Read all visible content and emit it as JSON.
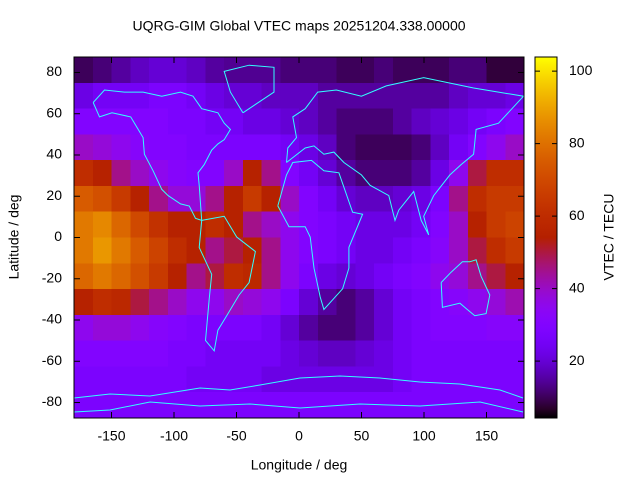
{
  "chart_data": {
    "type": "heatmap",
    "title": "UQRG-GIM Global VTEC maps 20251204.338.00000",
    "xlabel": "Longitude / deg",
    "ylabel": "Latitude / deg",
    "colorbar_label": "VTEC / TECU",
    "colormap": "gnuplot",
    "x": [
      -172.5,
      -157.5,
      -142.5,
      -127.5,
      -112.5,
      -97.5,
      -82.5,
      -67.5,
      -52.5,
      -37.5,
      -22.5,
      -7.5,
      7.5,
      22.5,
      37.5,
      52.5,
      67.5,
      82.5,
      97.5,
      112.5,
      127.5,
      142.5,
      157.5,
      172.5
    ],
    "y": [
      81.25,
      68.75,
      56.25,
      43.75,
      31.25,
      18.75,
      6.25,
      -6.25,
      -18.75,
      -31.25,
      -43.75,
      -56.25,
      -68.75,
      -81.25
    ],
    "z": [
      [
        10,
        12,
        15,
        18,
        20,
        20,
        18,
        15,
        14,
        14,
        14,
        12,
        12,
        12,
        10,
        10,
        12,
        10,
        10,
        10,
        12,
        12,
        8,
        8
      ],
      [
        22,
        25,
        25,
        25,
        28,
        28,
        25,
        22,
        20,
        20,
        18,
        18,
        18,
        15,
        15,
        15,
        15,
        15,
        15,
        15,
        18,
        20,
        20,
        22
      ],
      [
        30,
        30,
        30,
        30,
        30,
        28,
        28,
        25,
        25,
        22,
        22,
        20,
        18,
        15,
        12,
        12,
        12,
        15,
        18,
        20,
        22,
        25,
        28,
        30
      ],
      [
        40,
        38,
        35,
        32,
        30,
        30,
        28,
        28,
        28,
        28,
        28,
        25,
        22,
        18,
        12,
        10,
        10,
        10,
        12,
        18,
        25,
        30,
        35,
        40
      ],
      [
        60,
        55,
        45,
        40,
        35,
        32,
        30,
        30,
        40,
        55,
        45,
        30,
        25,
        20,
        15,
        12,
        12,
        12,
        15,
        22,
        35,
        50,
        60,
        60
      ],
      [
        75,
        72,
        65,
        55,
        45,
        38,
        38,
        45,
        55,
        65,
        55,
        40,
        30,
        25,
        20,
        18,
        18,
        20,
        22,
        28,
        45,
        60,
        65,
        65
      ],
      [
        82,
        85,
        78,
        70,
        62,
        55,
        55,
        60,
        55,
        45,
        40,
        35,
        30,
        28,
        25,
        22,
        22,
        22,
        25,
        30,
        40,
        55,
        65,
        68
      ],
      [
        82,
        88,
        82,
        75,
        68,
        60,
        55,
        45,
        50,
        55,
        45,
        35,
        30,
        28,
        25,
        22,
        22,
        25,
        28,
        32,
        40,
        50,
        60,
        65
      ],
      [
        78,
        82,
        78,
        72,
        65,
        55,
        45,
        50,
        60,
        58,
        45,
        35,
        28,
        22,
        20,
        22,
        25,
        28,
        30,
        35,
        38,
        45,
        50,
        55
      ],
      [
        55,
        60,
        58,
        50,
        45,
        40,
        35,
        35,
        40,
        38,
        35,
        28,
        20,
        15,
        12,
        15,
        20,
        25,
        28,
        30,
        32,
        35,
        38,
        42
      ],
      [
        35,
        38,
        38,
        35,
        32,
        30,
        28,
        28,
        28,
        28,
        25,
        20,
        15,
        12,
        12,
        15,
        20,
        25,
        28,
        30,
        30,
        30,
        32,
        32
      ],
      [
        30,
        30,
        30,
        30,
        30,
        28,
        28,
        25,
        25,
        25,
        25,
        22,
        20,
        18,
        18,
        20,
        22,
        25,
        28,
        28,
        28,
        28,
        28,
        28
      ],
      [
        28,
        28,
        28,
        28,
        28,
        28,
        25,
        25,
        25,
        25,
        22,
        22,
        22,
        22,
        22,
        22,
        22,
        25,
        28,
        28,
        28,
        28,
        28,
        28
      ],
      [
        28,
        28,
        28,
        28,
        28,
        28,
        28,
        28,
        28,
        28,
        28,
        28,
        28,
        28,
        28,
        28,
        28,
        28,
        28,
        28,
        28,
        28,
        28,
        28
      ]
    ],
    "xlim": [
      -180,
      180
    ],
    "ylim": [
      -87.5,
      87.5
    ],
    "xticks": [
      -150,
      -100,
      -50,
      0,
      50,
      100,
      150
    ],
    "yticks": [
      -80,
      -60,
      -40,
      -20,
      0,
      20,
      40,
      60,
      80
    ],
    "zlim": [
      4.3,
      103.9
    ],
    "zticks": [
      20,
      40,
      60,
      80,
      100
    ]
  }
}
